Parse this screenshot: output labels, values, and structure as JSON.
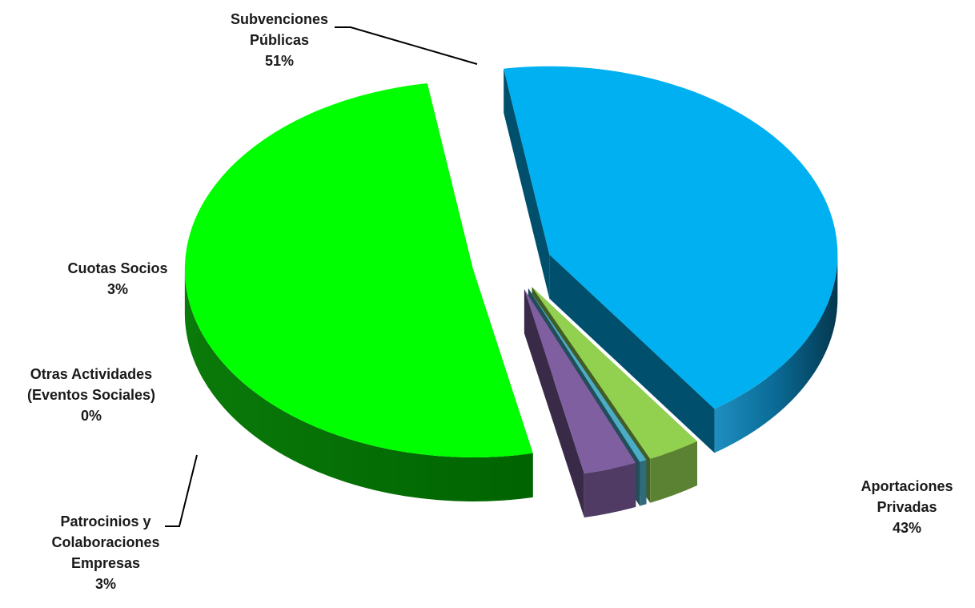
{
  "chart_data": {
    "type": "pie",
    "title": "",
    "three_d": true,
    "slices": [
      {
        "name": "Subvenciones Públicas",
        "label_lines": [
          "Subvenciones",
          "Públicas"
        ],
        "pct": "51%",
        "value": 51,
        "color": "#00ff00"
      },
      {
        "name": "Aportaciones Privadas",
        "label_lines": [
          "Aportaciones",
          "Privadas"
        ],
        "pct": "43%",
        "value": 43,
        "color": "#00b0f0"
      },
      {
        "name": "Patrocinios y Colaboraciones Empresas",
        "label_lines": [
          "Patrocinios y",
          "Colaboraciones",
          "Empresas"
        ],
        "pct": "3%",
        "value": 3,
        "color": "#92d050"
      },
      {
        "name": "Otras Actividades (Eventos Sociales)",
        "label_lines": [
          "Otras Actividades",
          "(Eventos Sociales)"
        ],
        "pct": "0%",
        "value": 0.4,
        "color": "#4bacc6"
      },
      {
        "name": "Cuotas Socios",
        "label_lines": [
          "Cuotas Socios"
        ],
        "pct": "3%",
        "value": 3,
        "color": "#7f5fa0"
      }
    ],
    "legend": "none"
  }
}
